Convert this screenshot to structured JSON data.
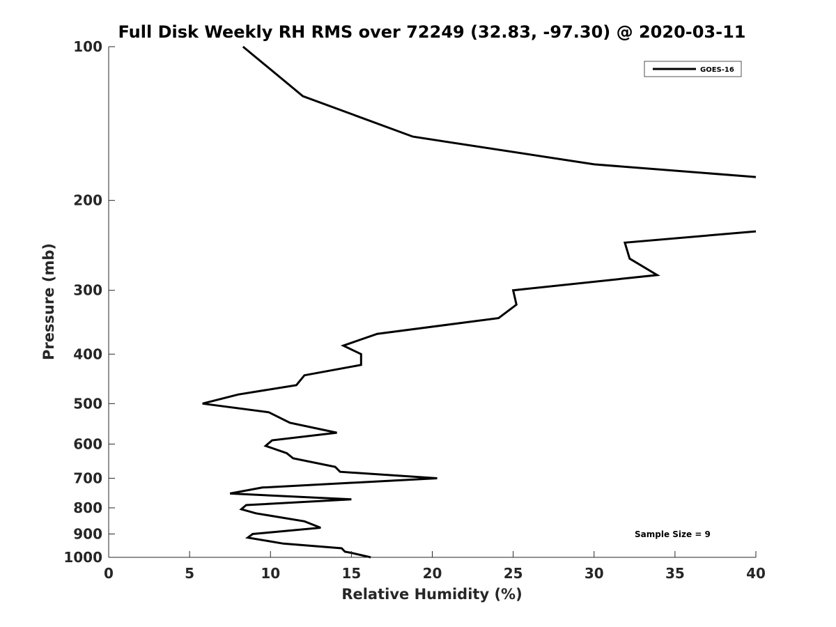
{
  "chart_data": {
    "type": "line",
    "title": "Full Disk Weekly RH RMS over 72249 (32.83, -97.30) @ 2020-03-11",
    "xlabel": "Relative Humidity (%)",
    "ylabel": "Pressure (mb)",
    "xlim": [
      0,
      40
    ],
    "ylim": [
      100,
      1000
    ],
    "y_scale": "log",
    "y_reversed": true,
    "grid": false,
    "legend_position": "top-right",
    "xticks": [
      0,
      5,
      10,
      15,
      20,
      25,
      30,
      35,
      40
    ],
    "yticks": [
      100,
      200,
      300,
      400,
      500,
      600,
      700,
      800,
      900,
      1000
    ],
    "series": [
      {
        "name": "GOES-16",
        "color": "#000000",
        "segments": [
          [
            {
              "x": 8.3,
              "y": 100
            },
            {
              "x": 12.0,
              "y": 125
            },
            {
              "x": 18.8,
              "y": 150
            },
            {
              "x": 30.0,
              "y": 170
            },
            {
              "x": 40.0,
              "y": 180
            }
          ],
          [
            {
              "x": 40.0,
              "y": 230
            },
            {
              "x": 31.9,
              "y": 242
            },
            {
              "x": 32.2,
              "y": 260
            },
            {
              "x": 33.9,
              "y": 280
            },
            {
              "x": 25.0,
              "y": 300
            },
            {
              "x": 25.2,
              "y": 320
            },
            {
              "x": 24.1,
              "y": 340
            },
            {
              "x": 16.6,
              "y": 365
            },
            {
              "x": 14.5,
              "y": 385
            },
            {
              "x": 15.6,
              "y": 400
            },
            {
              "x": 15.6,
              "y": 420
            },
            {
              "x": 12.1,
              "y": 440
            },
            {
              "x": 11.6,
              "y": 460
            },
            {
              "x": 8.0,
              "y": 480
            },
            {
              "x": 5.8,
              "y": 500
            },
            {
              "x": 9.9,
              "y": 520
            },
            {
              "x": 11.2,
              "y": 545
            },
            {
              "x": 14.1,
              "y": 570
            },
            {
              "x": 10.1,
              "y": 590
            },
            {
              "x": 9.7,
              "y": 605
            },
            {
              "x": 11.0,
              "y": 625
            },
            {
              "x": 11.4,
              "y": 640
            },
            {
              "x": 14.0,
              "y": 665
            },
            {
              "x": 14.3,
              "y": 680
            },
            {
              "x": 20.3,
              "y": 700
            },
            {
              "x": 9.5,
              "y": 730
            },
            {
              "x": 7.5,
              "y": 750
            },
            {
              "x": 15.0,
              "y": 770
            },
            {
              "x": 8.5,
              "y": 790
            },
            {
              "x": 8.2,
              "y": 805
            },
            {
              "x": 9.1,
              "y": 820
            },
            {
              "x": 12.1,
              "y": 850
            },
            {
              "x": 13.1,
              "y": 875
            },
            {
              "x": 8.9,
              "y": 900
            },
            {
              "x": 8.6,
              "y": 915
            },
            {
              "x": 10.8,
              "y": 940
            },
            {
              "x": 14.4,
              "y": 960
            },
            {
              "x": 14.6,
              "y": 975
            },
            {
              "x": 15.0,
              "y": 980
            },
            {
              "x": 16.2,
              "y": 1000
            }
          ]
        ]
      }
    ],
    "legend": [
      {
        "label": "GOES-16"
      }
    ],
    "annotations": [
      {
        "text": "Sample Size = 9"
      }
    ]
  }
}
